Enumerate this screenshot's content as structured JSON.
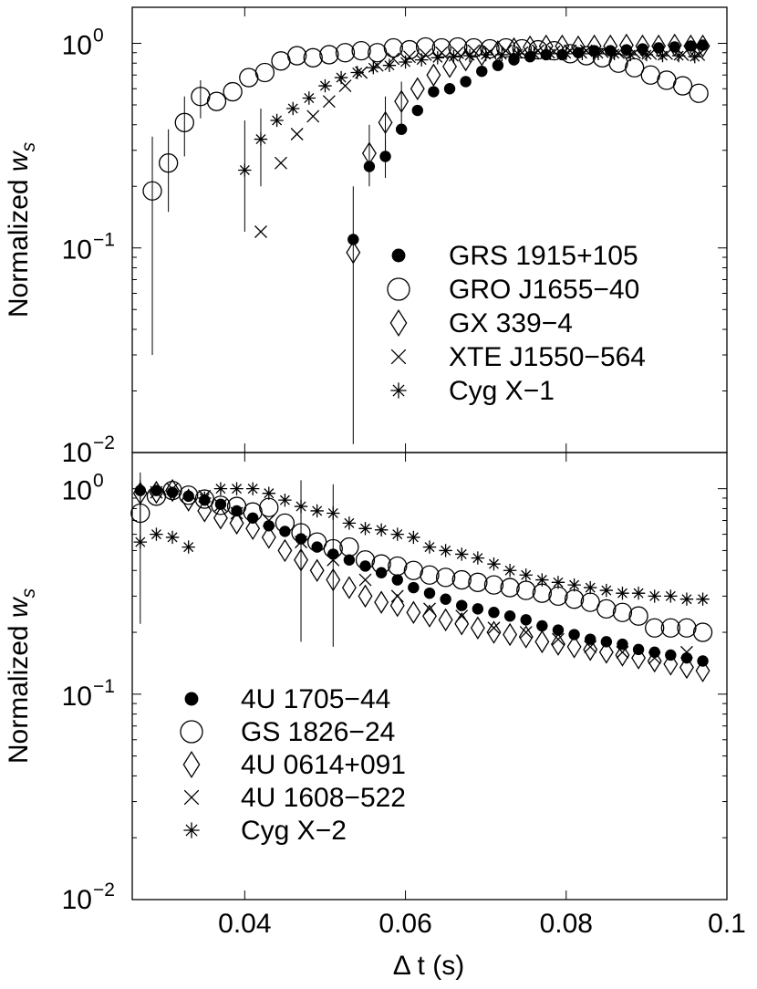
{
  "chart_data": [
    {
      "type": "scatter",
      "panel": "top",
      "ylabel": "Normalized",
      "ylabel_symbol": "w",
      "ylabel_subscript": "s",
      "yscale": "log",
      "ylim": [
        0.01,
        1.5
      ],
      "xlim": [
        0.026,
        0.1
      ],
      "yticks": [
        {
          "value": 1,
          "base": "10",
          "exp": "0"
        },
        {
          "value": 0.1,
          "base": "10",
          "exp": "−1"
        },
        {
          "value": 0.01,
          "base": "10",
          "exp": "−2"
        }
      ],
      "legend_position": "bottom-right",
      "series": [
        {
          "name": "GRS 1915+105",
          "marker": "dot",
          "x": [
            0.0535,
            0.0555,
            0.0575,
            0.0595,
            0.0615,
            0.0635,
            0.0655,
            0.0675,
            0.0695,
            0.0715,
            0.0735,
            0.0755,
            0.0775,
            0.0795,
            0.0815,
            0.0835,
            0.0855,
            0.0875,
            0.0895,
            0.0915,
            0.0935,
            0.0955,
            0.097
          ],
          "y": [
            0.11,
            0.25,
            0.28,
            0.38,
            0.47,
            0.58,
            0.6,
            0.65,
            0.73,
            0.78,
            0.83,
            0.86,
            0.88,
            0.88,
            0.9,
            0.92,
            0.92,
            0.93,
            0.94,
            0.95,
            0.96,
            0.97,
            0.98
          ],
          "err": [
            [
              0.011,
              0.2
            ],
            null,
            [
              0.22,
              0.34
            ],
            null,
            null,
            null,
            null,
            null,
            null,
            null,
            null,
            null,
            null,
            null,
            null,
            null,
            null,
            null,
            null,
            null,
            null,
            null,
            null
          ]
        },
        {
          "name": "GRO J1655-40",
          "marker": "circle",
          "x": [
            0.0285,
            0.0305,
            0.0325,
            0.0345,
            0.0365,
            0.0385,
            0.0405,
            0.0425,
            0.0445,
            0.0465,
            0.0485,
            0.0505,
            0.0525,
            0.0545,
            0.0565,
            0.0585,
            0.0605,
            0.0625,
            0.0645,
            0.0665,
            0.0685,
            0.0705,
            0.0725,
            0.0745,
            0.0765,
            0.0785,
            0.0805,
            0.0825,
            0.0845,
            0.0865,
            0.0885,
            0.0905,
            0.0925,
            0.0945,
            0.0965
          ],
          "y": [
            0.19,
            0.26,
            0.41,
            0.55,
            0.52,
            0.58,
            0.68,
            0.72,
            0.82,
            0.87,
            0.85,
            0.88,
            0.9,
            0.92,
            0.9,
            0.95,
            0.93,
            0.96,
            0.95,
            0.96,
            0.95,
            0.94,
            0.95,
            0.94,
            0.93,
            0.92,
            0.89,
            0.87,
            0.85,
            0.8,
            0.76,
            0.7,
            0.66,
            0.62,
            0.57
          ],
          "err": [
            [
              0.03,
              0.35
            ],
            [
              0.15,
              0.38
            ],
            [
              0.28,
              0.55
            ],
            [
              0.43,
              0.66
            ],
            null,
            null,
            null,
            null,
            null,
            null,
            null,
            null,
            null,
            null,
            null,
            null,
            null,
            null,
            null,
            null,
            null,
            null,
            null,
            null,
            null,
            null,
            null,
            null,
            null,
            null,
            null,
            null,
            null,
            null,
            null
          ]
        },
        {
          "name": "GX 339-4",
          "marker": "diamond",
          "x": [
            0.0535,
            0.0555,
            0.0575,
            0.0595,
            0.0615,
            0.0635,
            0.0655,
            0.0675,
            0.0695,
            0.0715,
            0.0735,
            0.0755,
            0.0775,
            0.0795,
            0.0815,
            0.0835,
            0.0855,
            0.0875,
            0.0895,
            0.0915,
            0.0935,
            0.0955,
            0.097
          ],
          "y": [
            0.095,
            0.29,
            0.41,
            0.52,
            0.6,
            0.7,
            0.77,
            0.83,
            0.88,
            0.91,
            0.94,
            0.96,
            0.97,
            0.97,
            0.96,
            0.97,
            0.97,
            0.98,
            0.97,
            0.97,
            0.98,
            0.97,
            0.97
          ],
          "err": [
            null,
            [
              0.2,
              0.4
            ],
            [
              0.3,
              0.55
            ],
            [
              0.4,
              0.65
            ],
            null,
            null,
            null,
            null,
            null,
            null,
            null,
            null,
            null,
            null,
            null,
            null,
            null,
            null,
            null,
            null,
            null,
            null,
            null
          ]
        },
        {
          "name": "XTE J1550-564",
          "marker": "cross",
          "x": [
            0.042,
            0.0445,
            0.0465,
            0.0485,
            0.0505,
            0.0525,
            0.0545,
            0.0565,
            0.0585,
            0.0605,
            0.0625,
            0.0645,
            0.0665,
            0.0685,
            0.0705,
            0.0725,
            0.0745,
            0.0765,
            0.0785,
            0.0805,
            0.0825,
            0.0845,
            0.0865,
            0.0885,
            0.0905,
            0.0925,
            0.0945,
            0.0965
          ],
          "y": [
            0.12,
            0.26,
            0.36,
            0.44,
            0.52,
            0.62,
            0.72,
            0.78,
            0.84,
            0.86,
            0.88,
            0.9,
            0.9,
            0.92,
            0.91,
            0.92,
            0.9,
            0.92,
            0.91,
            0.92,
            0.92,
            0.91,
            0.9,
            0.9,
            0.89,
            0.89,
            0.88,
            0.88
          ],
          "err": null
        },
        {
          "name": "Cyg X-1",
          "marker": "star",
          "x": [
            0.04,
            0.042,
            0.044,
            0.046,
            0.048,
            0.05,
            0.052,
            0.054,
            0.056,
            0.058,
            0.06,
            0.062,
            0.064,
            0.066,
            0.068,
            0.07,
            0.072,
            0.074,
            0.076,
            0.078,
            0.08,
            0.082,
            0.084,
            0.086,
            0.088,
            0.09,
            0.092,
            0.094,
            0.096
          ],
          "y": [
            0.24,
            0.34,
            0.42,
            0.48,
            0.54,
            0.62,
            0.68,
            0.72,
            0.76,
            0.78,
            0.81,
            0.83,
            0.85,
            0.86,
            0.87,
            0.88,
            0.88,
            0.89,
            0.89,
            0.89,
            0.89,
            0.89,
            0.89,
            0.89,
            0.88,
            0.88,
            0.87,
            0.87,
            0.86
          ],
          "err": [
            [
              0.12,
              0.42
            ],
            [
              0.2,
              0.48
            ],
            null,
            null,
            null,
            null,
            null,
            null,
            null,
            null,
            null,
            null,
            null,
            null,
            null,
            null,
            null,
            null,
            null,
            null,
            null,
            null,
            null,
            null,
            null,
            null,
            null,
            null,
            null
          ]
        }
      ]
    },
    {
      "type": "scatter",
      "panel": "bottom",
      "ylabel": "Normalized",
      "ylabel_symbol": "w",
      "ylabel_subscript": "s",
      "yscale": "log",
      "ylim": [
        0.01,
        1.5
      ],
      "xlim": [
        0.026,
        0.1
      ],
      "xlabel_symbol": "Δ",
      "xlabel": "t (s)",
      "xticks": [
        {
          "value": 0.04,
          "label": "0.04"
        },
        {
          "value": 0.06,
          "label": "0.06"
        },
        {
          "value": 0.08,
          "label": "0.08"
        },
        {
          "value": 0.1,
          "label": "0.1"
        }
      ],
      "yticks": [
        {
          "value": 1,
          "base": "10",
          "exp": "0"
        },
        {
          "value": 0.1,
          "base": "10",
          "exp": "−1"
        },
        {
          "value": 0.01,
          "base": "10",
          "exp": "−2"
        }
      ],
      "legend_position": "bottom-left",
      "series": [
        {
          "name": "4U 1705-44",
          "marker": "dot",
          "x": [
            0.027,
            0.029,
            0.031,
            0.033,
            0.035,
            0.037,
            0.039,
            0.041,
            0.043,
            0.045,
            0.047,
            0.049,
            0.051,
            0.053,
            0.055,
            0.057,
            0.059,
            0.061,
            0.063,
            0.065,
            0.067,
            0.069,
            0.071,
            0.073,
            0.075,
            0.077,
            0.079,
            0.081,
            0.083,
            0.085,
            0.087,
            0.089,
            0.091,
            0.093,
            0.095,
            0.097
          ],
          "y": [
            0.98,
            0.98,
            0.96,
            0.92,
            0.88,
            0.84,
            0.78,
            0.72,
            0.66,
            0.62,
            0.57,
            0.52,
            0.48,
            0.45,
            0.42,
            0.39,
            0.36,
            0.33,
            0.31,
            0.29,
            0.27,
            0.26,
            0.25,
            0.24,
            0.23,
            0.215,
            0.205,
            0.195,
            0.185,
            0.18,
            0.175,
            0.165,
            0.16,
            0.155,
            0.15,
            0.145
          ],
          "err": null
        },
        {
          "name": "GS 1826-24",
          "marker": "circle",
          "x": [
            0.027,
            0.029,
            0.031,
            0.033,
            0.035,
            0.037,
            0.039,
            0.041,
            0.043,
            0.045,
            0.047,
            0.049,
            0.051,
            0.053,
            0.055,
            0.057,
            0.059,
            0.061,
            0.063,
            0.065,
            0.067,
            0.069,
            0.071,
            0.073,
            0.075,
            0.077,
            0.079,
            0.081,
            0.083,
            0.085,
            0.087,
            0.089,
            0.091,
            0.093,
            0.095,
            0.097
          ],
          "y": [
            0.76,
            0.92,
            0.98,
            0.93,
            0.89,
            0.83,
            0.82,
            0.77,
            0.81,
            0.68,
            0.61,
            0.55,
            0.51,
            0.52,
            0.45,
            0.43,
            0.42,
            0.4,
            0.38,
            0.37,
            0.36,
            0.35,
            0.34,
            0.33,
            0.32,
            0.31,
            0.3,
            0.29,
            0.28,
            0.26,
            0.25,
            0.24,
            0.21,
            0.21,
            0.21,
            0.2
          ],
          "err": [
            [
              0.55,
              1.1
            ],
            null,
            null,
            null,
            null,
            null,
            null,
            null,
            null,
            null,
            null,
            null,
            null,
            null,
            null,
            null,
            null,
            null,
            null,
            null,
            null,
            null,
            null,
            null,
            null,
            null,
            null,
            null,
            null,
            null,
            null,
            null,
            null,
            null,
            null,
            null
          ]
        },
        {
          "name": "4U 0614+091",
          "marker": "diamond",
          "x": [
            0.027,
            0.029,
            0.031,
            0.033,
            0.035,
            0.037,
            0.039,
            0.041,
            0.043,
            0.045,
            0.047,
            0.049,
            0.051,
            0.053,
            0.055,
            0.057,
            0.059,
            0.061,
            0.063,
            0.065,
            0.067,
            0.069,
            0.071,
            0.073,
            0.075,
            0.077,
            0.079,
            0.081,
            0.083,
            0.085,
            0.087,
            0.089,
            0.091,
            0.093,
            0.095,
            0.097
          ],
          "y": [
            0.95,
            0.96,
            0.98,
            0.88,
            0.78,
            0.72,
            0.68,
            0.64,
            0.58,
            0.5,
            0.45,
            0.4,
            0.36,
            0.33,
            0.3,
            0.28,
            0.27,
            0.25,
            0.24,
            0.23,
            0.22,
            0.21,
            0.2,
            0.195,
            0.19,
            0.18,
            0.175,
            0.17,
            0.165,
            0.16,
            0.155,
            0.15,
            0.145,
            0.14,
            0.135,
            0.13
          ],
          "err": null
        },
        {
          "name": "4U 1608-522",
          "marker": "cross",
          "x": [
            0.029,
            0.031,
            0.035,
            0.037,
            0.039,
            0.043,
            0.047,
            0.051,
            0.055,
            0.059,
            0.063,
            0.067,
            0.071,
            0.075,
            0.079,
            0.083,
            0.087,
            0.091,
            0.095
          ],
          "y": [
            0.96,
            1.0,
            0.92,
            0.83,
            0.76,
            0.7,
            0.55,
            0.45,
            0.36,
            0.3,
            0.26,
            0.24,
            0.21,
            0.2,
            0.185,
            0.17,
            0.16,
            0.15,
            0.16
          ],
          "err": null
        },
        {
          "name": "Cyg X-2",
          "marker": "star",
          "x": [
            0.027,
            0.029,
            0.031,
            0.033,
            0.035,
            0.037,
            0.039,
            0.041,
            0.043,
            0.045,
            0.047,
            0.049,
            0.051,
            0.053,
            0.055,
            0.057,
            0.059,
            0.061,
            0.063,
            0.065,
            0.067,
            0.069,
            0.071,
            0.073,
            0.075,
            0.077,
            0.079,
            0.081,
            0.083,
            0.085,
            0.087,
            0.089,
            0.091,
            0.093,
            0.095,
            0.097
          ],
          "y": [
            0.55,
            0.6,
            0.58,
            0.52,
            0.9,
            1.0,
            1.0,
            1.0,
            0.95,
            0.88,
            0.82,
            0.78,
            0.76,
            0.68,
            0.64,
            0.63,
            0.6,
            0.58,
            0.52,
            0.5,
            0.48,
            0.46,
            0.43,
            0.4,
            0.38,
            0.36,
            0.35,
            0.34,
            0.33,
            0.32,
            0.31,
            0.31,
            0.3,
            0.3,
            0.29,
            0.29
          ],
          "err": [
            [
              0.22,
              1.2
            ],
            null,
            null,
            null,
            null,
            null,
            null,
            null,
            null,
            null,
            [
              0.18,
              1.1
            ],
            null,
            [
              0.17,
              1.05
            ],
            null,
            null,
            null,
            null,
            null,
            null,
            null,
            null,
            null,
            null,
            null,
            null,
            null,
            null,
            null,
            null,
            null,
            null,
            null,
            null,
            null,
            null,
            null
          ]
        }
      ]
    }
  ]
}
